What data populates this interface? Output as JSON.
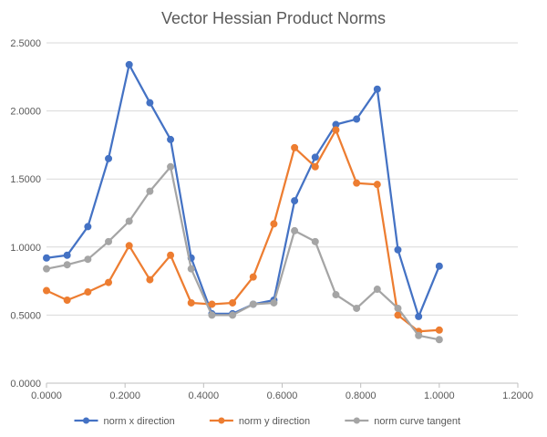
{
  "chart_data": {
    "type": "scatter",
    "title": "Vector Hessian Product Norms",
    "xlabel": "",
    "ylabel": "",
    "xlim": [
      0,
      1.2
    ],
    "ylim": [
      0,
      2.5
    ],
    "x_ticks": [
      "0.0000",
      "0.2000",
      "0.4000",
      "0.6000",
      "0.8000",
      "1.0000",
      "1.2000"
    ],
    "x_tick_values": [
      0,
      0.2,
      0.4,
      0.6,
      0.8,
      1.0,
      1.2
    ],
    "y_ticks": [
      "0.0000",
      "0.5000",
      "1.0000",
      "1.5000",
      "2.0000",
      "2.5000"
    ],
    "y_tick_values": [
      0,
      0.5,
      1.0,
      1.5,
      2.0,
      2.5
    ],
    "grid": "horizontal",
    "legend": "bottom",
    "series": [
      {
        "name": "norm x direction",
        "color": "#4472c4",
        "x": [
          0.0,
          0.0526,
          0.1053,
          0.1579,
          0.2105,
          0.2632,
          0.3158,
          0.3684,
          0.4211,
          0.4737,
          0.5263,
          0.5789,
          0.6316,
          0.6842,
          0.7368,
          0.7895,
          0.8421,
          0.8947,
          0.9474,
          1.0
        ],
        "y": [
          0.92,
          0.94,
          1.15,
          1.65,
          2.34,
          2.06,
          1.79,
          0.92,
          0.51,
          0.51,
          0.58,
          0.61,
          1.34,
          1.66,
          1.9,
          1.94,
          2.16,
          0.98,
          0.49,
          0.86
        ]
      },
      {
        "name": "norm y direction",
        "color": "#ed7d31",
        "x": [
          0.0,
          0.0526,
          0.1053,
          0.1579,
          0.2105,
          0.2632,
          0.3158,
          0.3684,
          0.4211,
          0.4737,
          0.5263,
          0.5789,
          0.6316,
          0.6842,
          0.7368,
          0.7895,
          0.8421,
          0.8947,
          0.9474,
          1.0
        ],
        "y": [
          0.68,
          0.61,
          0.67,
          0.74,
          1.01,
          0.76,
          0.94,
          0.59,
          0.58,
          0.59,
          0.78,
          1.17,
          1.73,
          1.59,
          1.86,
          1.47,
          1.46,
          0.5,
          0.38,
          0.39
        ]
      },
      {
        "name": "norm curve tangent",
        "color": "#a5a5a5",
        "x": [
          0.0,
          0.0526,
          0.1053,
          0.1579,
          0.2105,
          0.2632,
          0.3158,
          0.3684,
          0.4211,
          0.4737,
          0.5263,
          0.5789,
          0.6316,
          0.6842,
          0.7368,
          0.7895,
          0.8421,
          0.8947,
          0.9474,
          1.0
        ],
        "y": [
          0.84,
          0.87,
          0.91,
          1.04,
          1.19,
          1.41,
          1.59,
          0.84,
          0.5,
          0.5,
          0.58,
          0.59,
          1.12,
          1.04,
          0.65,
          0.55,
          0.69,
          0.55,
          0.35,
          0.32
        ]
      }
    ]
  }
}
